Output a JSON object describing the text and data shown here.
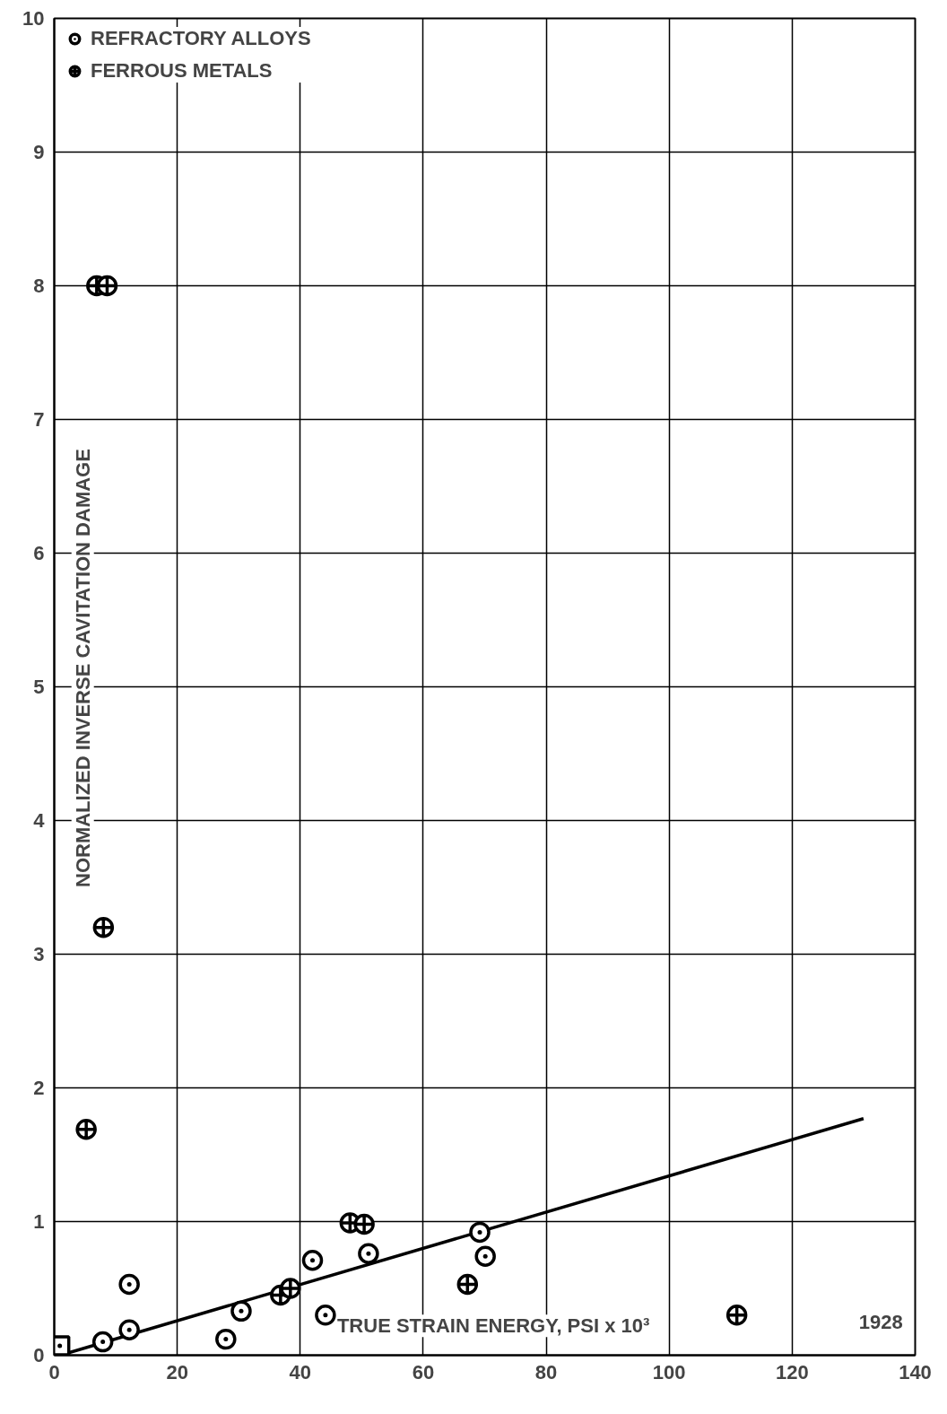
{
  "chart_data": {
    "type": "scatter",
    "xlabel": "TRUE STRAIN ENERGY, PSI x 10³",
    "ylabel": "NORMALIZED INVERSE CAVITATION DAMAGE",
    "annotations": [
      "1928"
    ],
    "xlim": [
      0,
      140
    ],
    "ylim": [
      0,
      10
    ],
    "xticks": [
      0,
      20,
      40,
      60,
      80,
      100,
      120,
      140
    ],
    "yticks": [
      0,
      1,
      2,
      3,
      4,
      5,
      6,
      7,
      8,
      9,
      10
    ],
    "grid": true,
    "legend": "top left",
    "series": [
      {
        "name": "REFRACTORY ALLOYS",
        "color": "#000000",
        "marker": "circle",
        "x": [
          7.9,
          12.2,
          12.2,
          27.9,
          30.4,
          42.0,
          44.1,
          51.1,
          69.2,
          70.1
        ],
        "values": [
          0.1,
          0.19,
          0.53,
          0.12,
          0.33,
          0.71,
          0.3,
          0.76,
          0.92,
          0.74
        ]
      },
      {
        "name": "FERROUS METALS",
        "color": "#000000",
        "marker": "circle",
        "x": [
          6.9,
          8.6,
          8.0,
          5.2,
          36.8,
          38.4,
          48.1,
          50.4,
          67.2,
          111.0
        ],
        "values": [
          8.0,
          8.0,
          3.2,
          1.69,
          0.45,
          0.5,
          0.99,
          0.98,
          0.53,
          0.3
        ]
      },
      {
        "color": "#000000",
        "marker": "square",
        "x": [
          0.9
        ],
        "values": [
          0.07
        ]
      },
      {
        "type": "line",
        "color": "#000000",
        "line_style": "solid",
        "x": [
          1,
          131.6
        ],
        "values": [
          0.0,
          1.77
        ]
      }
    ]
  }
}
